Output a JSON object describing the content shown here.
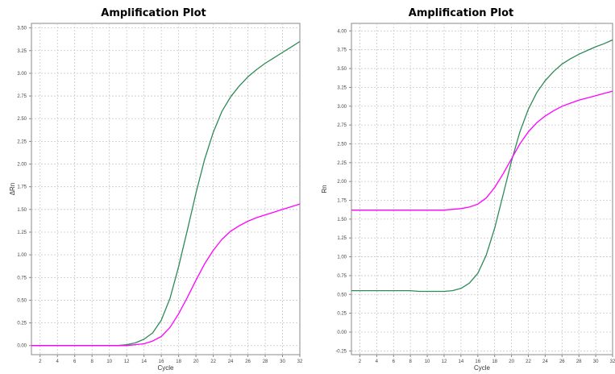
{
  "chart_data": [
    {
      "type": "line",
      "title": "Amplification Plot",
      "xlabel": "Cycle",
      "ylabel": "ΔRn",
      "xlim": [
        1,
        32
      ],
      "ylim": [
        -0.1,
        3.55
      ],
      "xticks": [
        2,
        4,
        6,
        8,
        10,
        12,
        14,
        16,
        18,
        20,
        22,
        24,
        26,
        28,
        30,
        32
      ],
      "yticks": [
        0.0,
        0.25,
        0.5,
        0.75,
        1.0,
        1.25,
        1.5,
        1.75,
        2.0,
        2.25,
        2.5,
        2.75,
        3.0,
        3.25,
        3.5
      ],
      "grid": true,
      "x": [
        1,
        2,
        3,
        4,
        5,
        6,
        7,
        8,
        9,
        10,
        11,
        12,
        13,
        14,
        15,
        16,
        17,
        18,
        19,
        20,
        21,
        22,
        23,
        24,
        25,
        26,
        27,
        28,
        29,
        30,
        31,
        32
      ],
      "series": [
        {
          "color": "#2e8b57",
          "values": [
            0.0,
            0.0,
            0.0,
            0.0,
            0.0,
            0.0,
            0.0,
            0.0,
            0.0,
            0.0,
            0.0,
            0.01,
            0.03,
            0.07,
            0.14,
            0.28,
            0.52,
            0.87,
            1.27,
            1.68,
            2.05,
            2.35,
            2.58,
            2.74,
            2.86,
            2.96,
            3.04,
            3.11,
            3.17,
            3.23,
            3.29,
            3.35
          ]
        },
        {
          "color": "#ff00ff",
          "values": [
            0.0,
            0.0,
            0.0,
            0.0,
            0.0,
            0.0,
            0.0,
            0.0,
            0.0,
            0.0,
            0.0,
            0.0,
            0.01,
            0.02,
            0.05,
            0.1,
            0.2,
            0.35,
            0.53,
            0.72,
            0.9,
            1.05,
            1.17,
            1.26,
            1.32,
            1.37,
            1.41,
            1.44,
            1.47,
            1.5,
            1.53,
            1.56
          ]
        }
      ]
    },
    {
      "type": "line",
      "title": "Amplification Plot",
      "xlabel": "Cycle",
      "ylabel": "Rn",
      "xlim": [
        1,
        32
      ],
      "ylim": [
        -0.3,
        4.1
      ],
      "xticks": [
        2,
        4,
        6,
        8,
        10,
        12,
        14,
        16,
        18,
        20,
        22,
        24,
        26,
        28,
        30,
        32
      ],
      "yticks": [
        -0.25,
        0.0,
        0.25,
        0.5,
        0.75,
        1.0,
        1.25,
        1.5,
        1.75,
        2.0,
        2.25,
        2.5,
        2.75,
        3.0,
        3.25,
        3.5,
        3.75,
        4.0
      ],
      "grid": true,
      "x": [
        1,
        2,
        3,
        4,
        5,
        6,
        7,
        8,
        9,
        10,
        11,
        12,
        13,
        14,
        15,
        16,
        17,
        18,
        19,
        20,
        21,
        22,
        23,
        24,
        25,
        26,
        27,
        28,
        29,
        30,
        31,
        32
      ],
      "series": [
        {
          "color": "#2e8b57",
          "values": [
            0.55,
            0.55,
            0.55,
            0.55,
            0.55,
            0.55,
            0.55,
            0.55,
            0.54,
            0.54,
            0.54,
            0.54,
            0.55,
            0.58,
            0.65,
            0.78,
            1.02,
            1.38,
            1.82,
            2.27,
            2.66,
            2.96,
            3.18,
            3.34,
            3.46,
            3.56,
            3.63,
            3.69,
            3.74,
            3.79,
            3.83,
            3.88
          ]
        },
        {
          "color": "#ff00ff",
          "values": [
            1.62,
            1.62,
            1.62,
            1.62,
            1.62,
            1.62,
            1.62,
            1.62,
            1.62,
            1.62,
            1.62,
            1.62,
            1.63,
            1.64,
            1.66,
            1.7,
            1.78,
            1.92,
            2.1,
            2.3,
            2.5,
            2.66,
            2.78,
            2.87,
            2.94,
            3.0,
            3.04,
            3.08,
            3.11,
            3.14,
            3.17,
            3.2
          ]
        }
      ]
    }
  ]
}
